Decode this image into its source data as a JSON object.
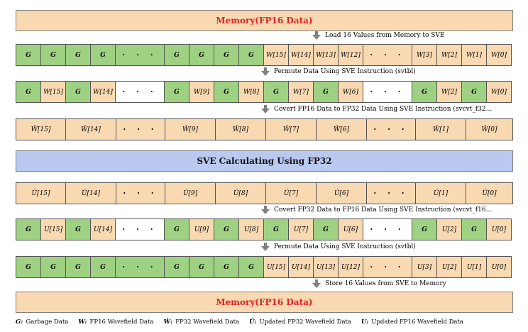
{
  "banners": {
    "memory_top": "Memory(FP16 Data)",
    "sve": "SVE Calculating Using FP32",
    "memory_bottom": "Memory(FP16 Data)"
  },
  "steps": [
    "Load 16 Values from Memory to SVE",
    "Permute Data Using SVE Instruction (svtbl)",
    "Covert FP16 Data to FP32 Data Using SVE Instruction (svcvt_f32...",
    "Covert FP32 Data to FP16 Data Using SVE Instruction (svcvt_f16...",
    "Permute Data Using SVE Instruction (svtbl)",
    "Store 16 Values from SVE to Memory"
  ],
  "rows": {
    "row1": [
      "G",
      "G",
      "G",
      "G",
      "· · ·",
      "G",
      "G",
      "G",
      "G",
      "W[15]",
      "W[14]",
      "W[13]",
      "W[12]",
      "· · ·",
      "W[3]",
      "W[2]",
      "W[1]",
      "W[0]"
    ],
    "row2": [
      "G",
      "W[15]",
      "G",
      "W[14]",
      "· · ·",
      "G",
      "W[9]",
      "G",
      "W[8]",
      "G",
      "W[7]",
      "G",
      "W[6]",
      "· · ·",
      "G",
      "W[2]",
      "G",
      "W[0]"
    ],
    "row3": [
      "Ŵ[15]",
      "Ŵ[14]",
      "· · ·",
      "Ŵ[9]",
      "Ŵ[8]",
      "Ŵ[7]",
      "Ŵ[6]",
      "· · ·",
      "Ŵ[1]",
      "Ŵ[0]"
    ],
    "row4": [
      "Û[15]",
      "Û[14]",
      "· · ·",
      "Û[9]",
      "Û[8]",
      "Û[7]",
      "Û[6]",
      "· · ·",
      "Û[1]",
      "Û[0]"
    ],
    "row5": [
      "G",
      "U[15]",
      "G",
      "U[14]",
      "· · ·",
      "G",
      "U[9]",
      "G",
      "U[8]",
      "G",
      "U[7]",
      "G",
      "U[6]",
      "· · ·",
      "G",
      "U[2]",
      "G",
      "U[0]"
    ],
    "row6": [
      "G",
      "G",
      "G",
      "G",
      "· · ·",
      "G",
      "G",
      "G",
      "G",
      "U[15]",
      "U[14]",
      "U[13]",
      "U[12]",
      "· · ·",
      "U[3]",
      "U[2]",
      "U[1]",
      "U[0]"
    ]
  },
  "legend": [
    {
      "symbol": "G:",
      "text": "Garbage Data"
    },
    {
      "symbol": "W:",
      "text": "FP16 Wavefield Data"
    },
    {
      "symbol": "Ŵ:",
      "text": "FP32 Wavefield Data"
    },
    {
      "symbol": "Û:",
      "text": "Updated FP32 Wavefield Data"
    },
    {
      "symbol": "U:",
      "text": "Updated FP16 Wavefield Data"
    }
  ],
  "colors": {
    "garbage": "#9fd183",
    "fp16": "#f8d9b2",
    "memory_title": "#e02020",
    "sve_banner": "#b9c9ef",
    "arrow": "#808080"
  }
}
